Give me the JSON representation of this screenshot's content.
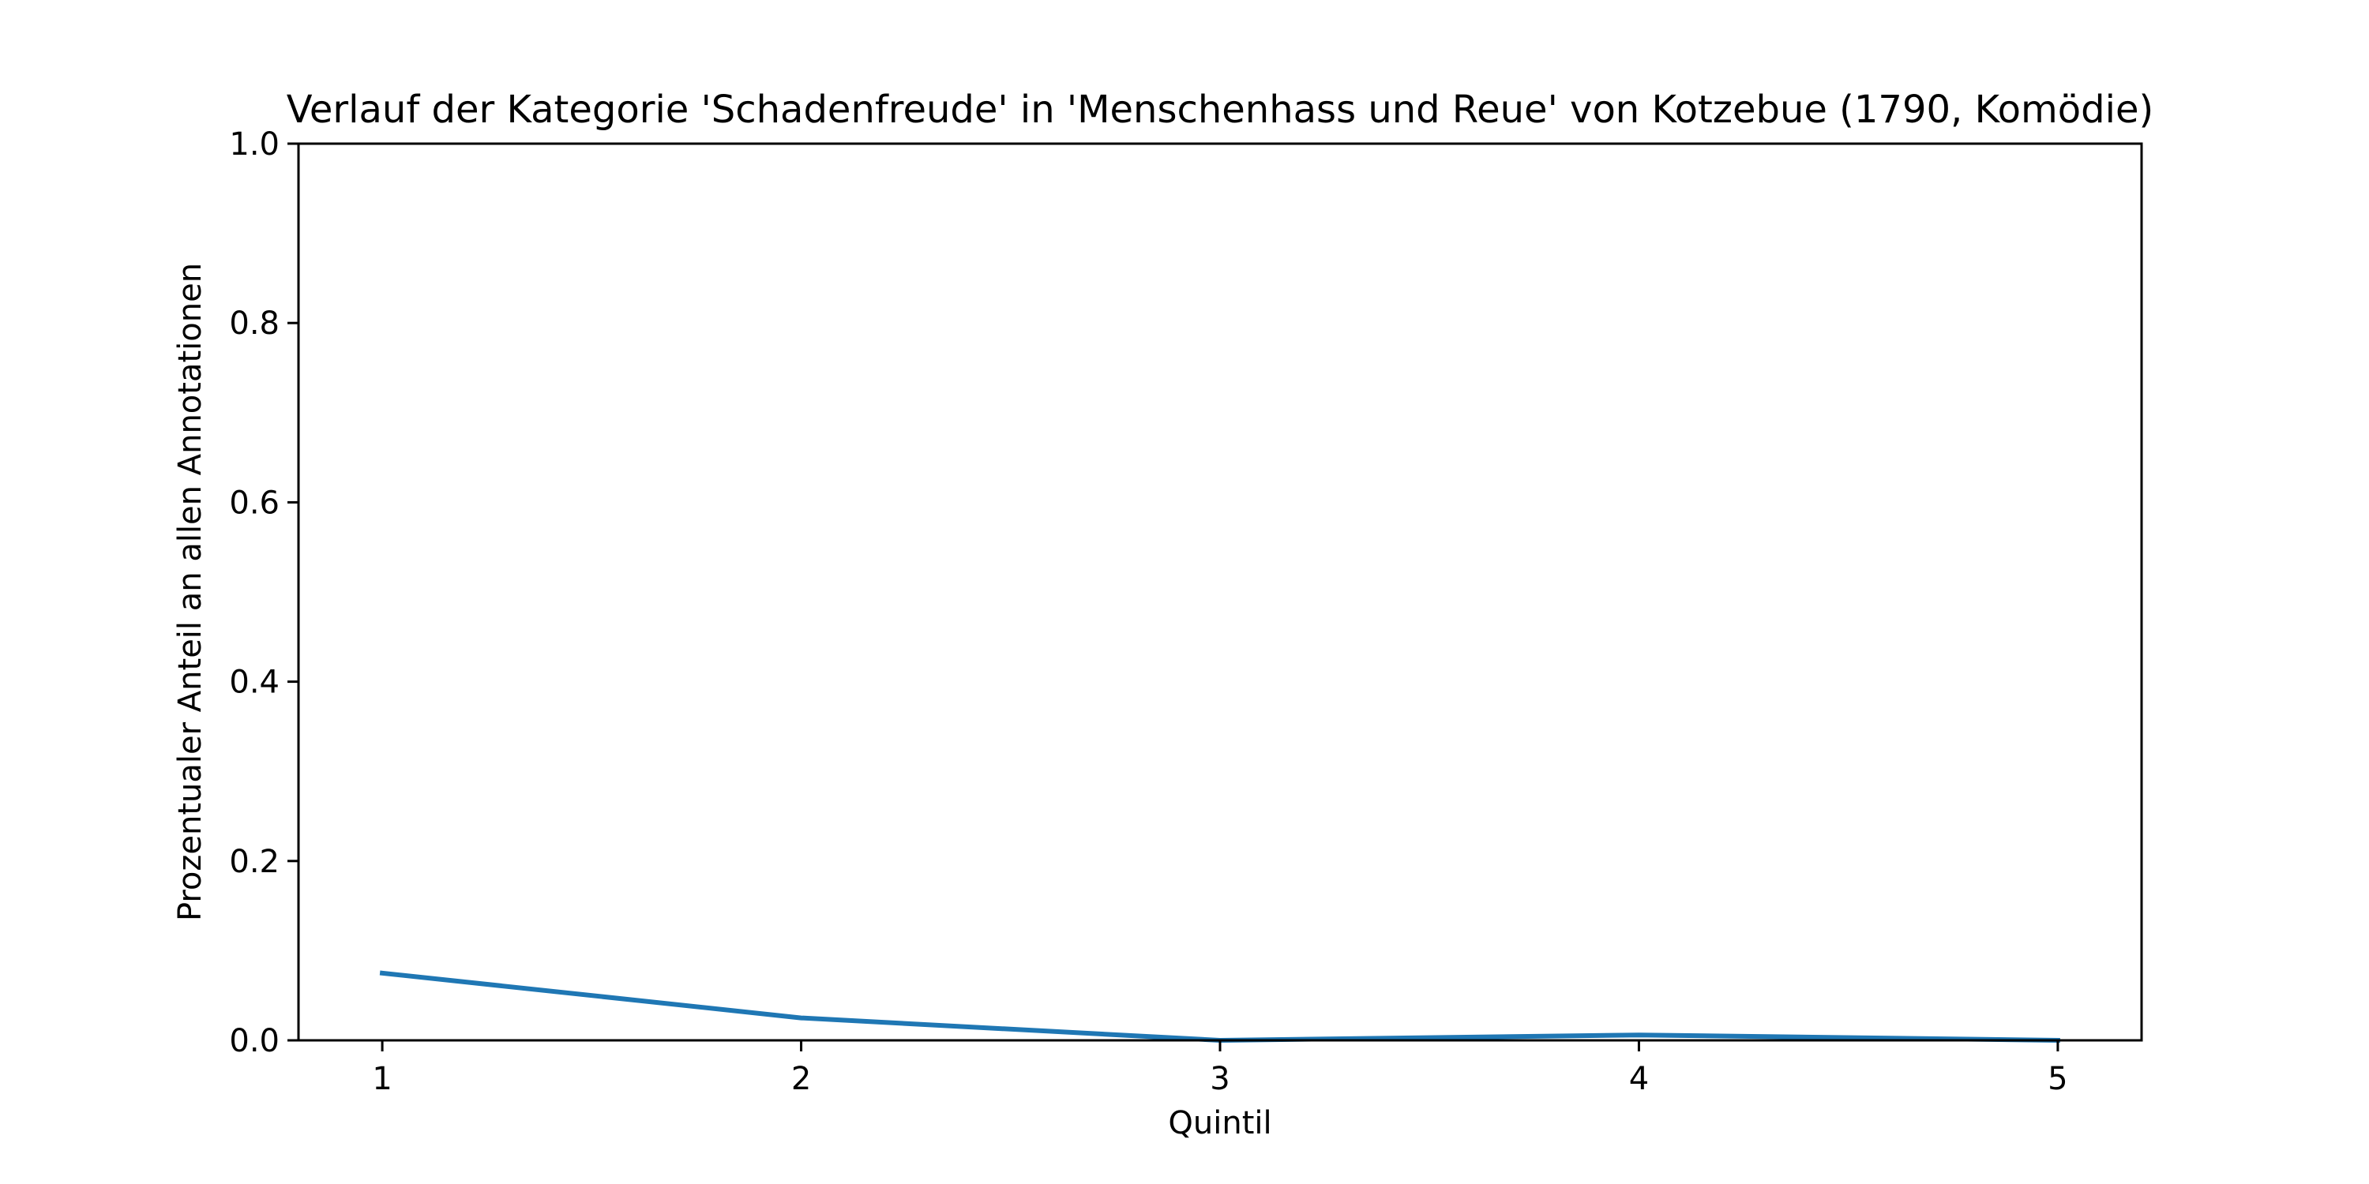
{
  "chart_data": {
    "type": "line",
    "title": "Verlauf der Kategorie 'Schadenfreude' in 'Menschenhass und Reue' von Kotzebue (1790, Komödie)",
    "xlabel": "Quintil",
    "ylabel": "Prozentualer Anteil an allen Annotationen",
    "x": [
      1,
      2,
      3,
      4,
      5
    ],
    "x_tick_labels": [
      "1",
      "2",
      "3",
      "4",
      "5"
    ],
    "xlim": [
      0.8,
      5.2
    ],
    "ylim": [
      0.0,
      1.0
    ],
    "y_ticks": [
      0.0,
      0.2,
      0.4,
      0.6,
      0.8,
      1.0
    ],
    "y_tick_labels": [
      "0.0",
      "0.2",
      "0.4",
      "0.6",
      "0.8",
      "1.0"
    ],
    "grid": false,
    "series": [
      {
        "values": [
          0.075,
          0.025,
          0.0,
          0.006,
          0.0
        ],
        "color": "#1f77b4"
      }
    ]
  }
}
